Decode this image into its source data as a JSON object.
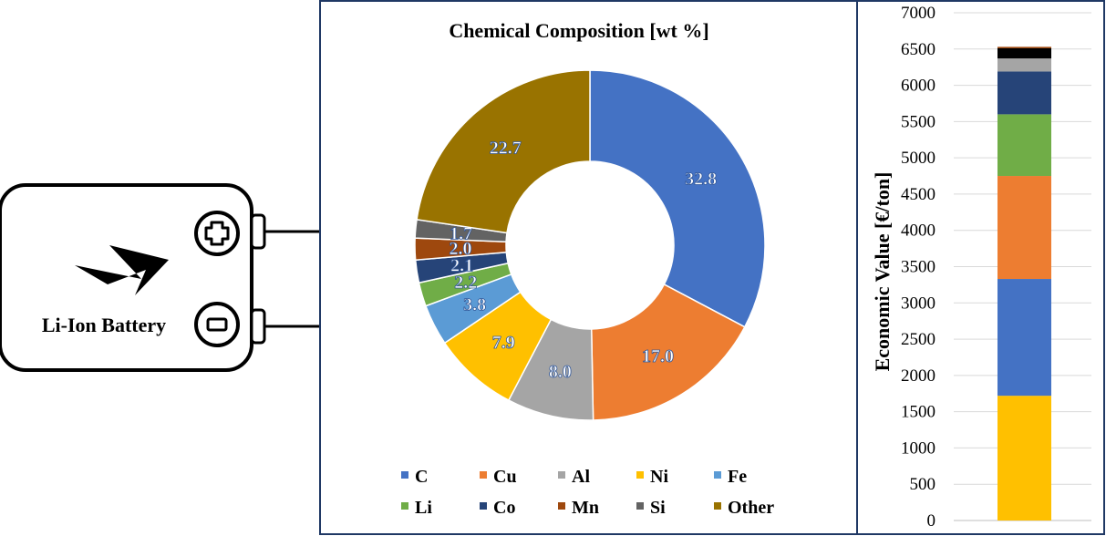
{
  "battery": {
    "label": "Li-Ion Battery",
    "positive_icon": "plus-icon",
    "negative_icon": "minus-icon",
    "bolt_icon": "lightning-bolt-icon"
  },
  "chart_data": [
    {
      "type": "pie",
      "variant": "donut",
      "title": "Chemical Composition [wt %]",
      "categories": [
        "C",
        "Cu",
        "Al",
        "Ni",
        "Fe",
        "Li",
        "Co",
        "Mn",
        "Si",
        "Other"
      ],
      "values": [
        32.8,
        17.0,
        8.0,
        7.9,
        3.8,
        2.2,
        2.1,
        2.0,
        1.7,
        22.7
      ],
      "labels": [
        "32.8",
        "17.0",
        "8.0",
        "7.9",
        "3.8",
        "2.2",
        "2.1",
        "2.0",
        "1.7",
        "22.7"
      ],
      "colors": [
        "#4472C4",
        "#ED7D31",
        "#A5A5A5",
        "#FFC000",
        "#5B9BD5",
        "#70AD47",
        "#264478",
        "#9E480E",
        "#636363",
        "#997300"
      ],
      "legend": "bottom"
    },
    {
      "type": "bar",
      "variant": "stacked",
      "ylabel": "Economic Value [€/ton]",
      "ylim": [
        0,
        7000
      ],
      "yticks": [
        "0",
        "500",
        "1000",
        "1500",
        "2000",
        "2500",
        "3000",
        "3500",
        "4000",
        "4500",
        "5000",
        "5500",
        "6000",
        "6500",
        "7000"
      ],
      "grid": true,
      "segments": [
        {
          "color": "#FFC000",
          "value": 1720
        },
        {
          "color": "#4472C4",
          "value": 1610
        },
        {
          "color": "#ED7D31",
          "value": 1420
        },
        {
          "color": "#70AD47",
          "value": 850
        },
        {
          "color": "#264478",
          "value": 590
        },
        {
          "color": "#A5A5A5",
          "value": 180
        },
        {
          "color": "#000000",
          "value": 140
        },
        {
          "color": "#9E480E",
          "value": 20
        }
      ]
    }
  ]
}
